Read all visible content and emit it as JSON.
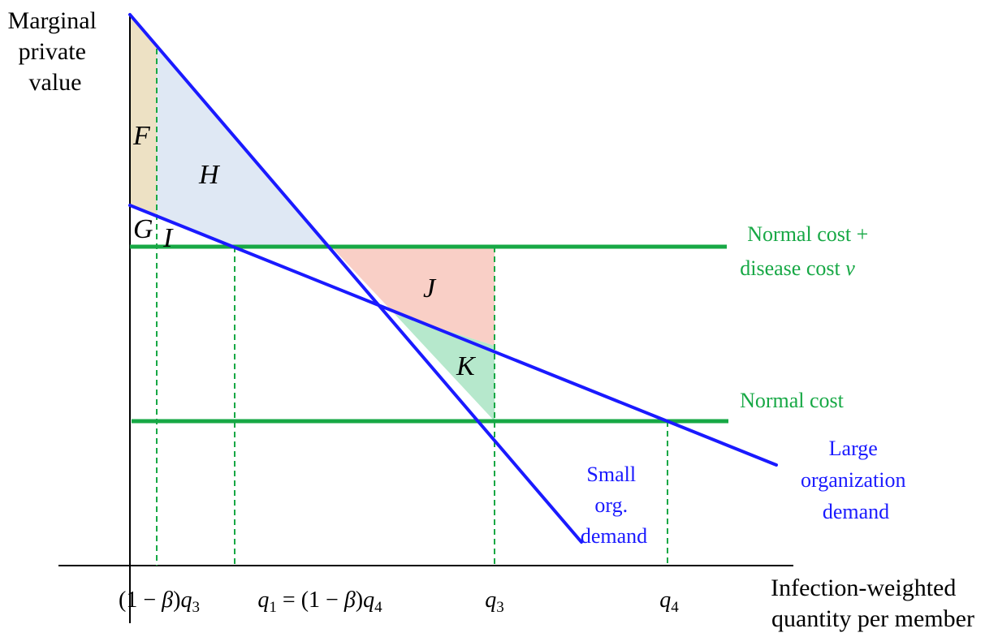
{
  "colors": {
    "demand_lines": "#1a1aff",
    "cost_lines": "#17a845",
    "cost_labels": "#17a845",
    "demand_labels": "#1a1aff",
    "axes": "#000000",
    "region_F_G": "#ede1c4",
    "region_H_I": "#dfe8f4",
    "region_J": "#f9cfc6",
    "region_K": "#b6e8cc"
  },
  "axes": {
    "y_label": [
      "Marginal",
      "private",
      "value"
    ],
    "x_label": [
      "Infection-weighted",
      "quantity per member"
    ]
  },
  "lines": {
    "cost_high": [
      "Normal cost +",
      "disease cost "
    ],
    "cost_high_symbol": "v",
    "cost_low": "Normal cost",
    "small_demand": [
      "Small",
      "org.",
      "demand"
    ],
    "large_demand": [
      "Large",
      "organization",
      "demand"
    ]
  },
  "regions": {
    "F": "F",
    "G": "G",
    "H": "H",
    "I": "I",
    "J": "J",
    "K": "K"
  },
  "ticks": {
    "t1": {
      "open": "(1 − ",
      "beta": "β",
      "close": ")",
      "q": "q",
      "sub": "3"
    },
    "t2": {
      "q": "q",
      "sub": "1",
      "mid": " = (1 − ",
      "beta": "β",
      "close": ")",
      "q2": "q",
      "sub2": "4"
    },
    "t3": {
      "q": "q",
      "sub": "3"
    },
    "t4": {
      "q": "q",
      "sub": "4"
    }
  }
}
